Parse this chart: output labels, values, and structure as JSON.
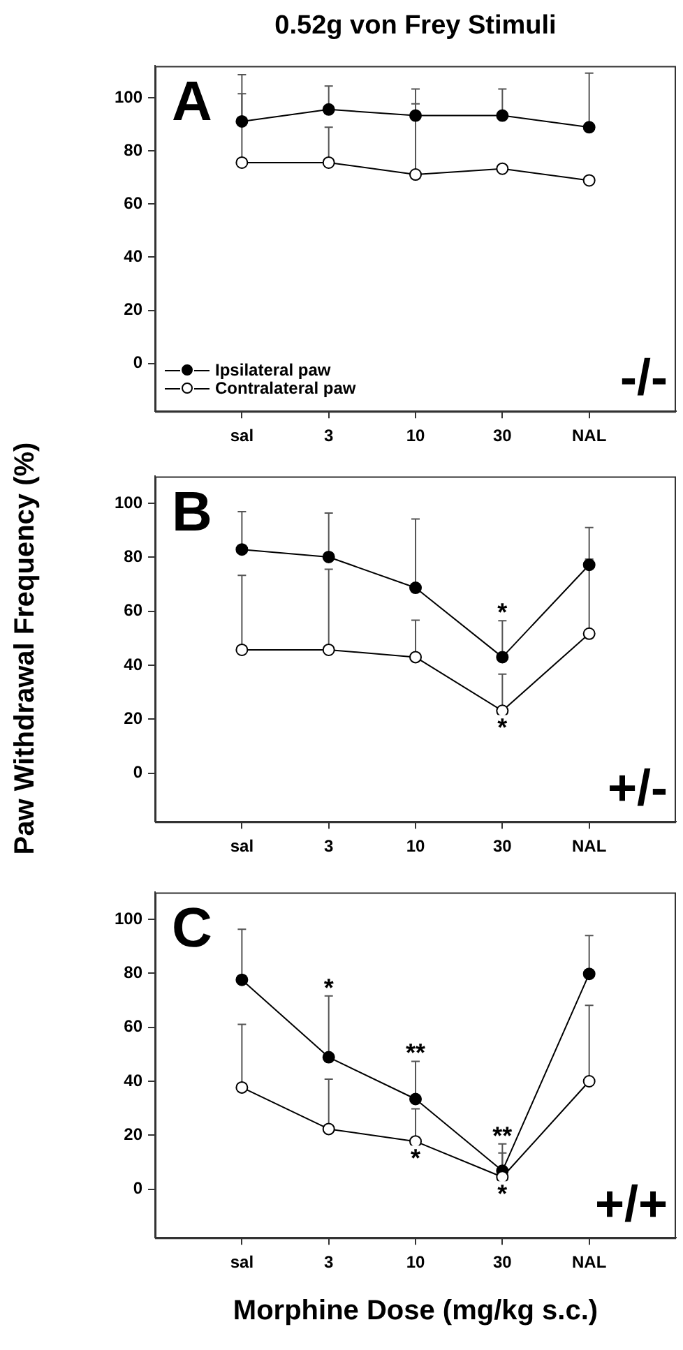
{
  "chart_data": [
    {
      "type": "line",
      "title": "0.52g von Frey Stimuli",
      "categories": [
        "sal",
        "3",
        "10",
        "30",
        "NAL"
      ],
      "ylim": [
        -18,
        112
      ],
      "yticks": [
        0,
        20,
        40,
        60,
        80,
        100
      ],
      "legend": "bottom left",
      "marker": "circle",
      "line_style": "solid",
      "series": [
        {
          "name": "Ipsilateral paw",
          "color": "#000000",
          "values": [
            91.1,
            95.6,
            93.3,
            93.3,
            88.9
          ],
          "errors": [
            [
              91.1,
              108.7
            ],
            [
              95.6,
              104.4
            ],
            [
              93.3,
              103.3
            ],
            [
              93.3,
              103.3
            ],
            [
              88.9,
              109.3
            ]
          ]
        },
        {
          "name": "Contralateral paw",
          "color": "#ffffff",
          "values": [
            75.6,
            75.6,
            71.1,
            73.3,
            68.9
          ],
          "errors": [
            [
              75.6,
              101.5
            ],
            [
              75.6,
              88.9
            ],
            [
              71.1,
              97.7
            ],
            null,
            null
          ]
        }
      ],
      "annotations": [
        "A",
        "-/-"
      ]
    },
    {
      "type": "line",
      "ylabel": "Paw Withdrawal Frequency (%)",
      "categories": [
        "sal",
        "3",
        "10",
        "30",
        "NAL"
      ],
      "ylim": [
        -18,
        110
      ],
      "yticks": [
        0,
        20,
        40,
        60,
        80,
        100
      ],
      "marker": "circle",
      "line_style": "solid",
      "series": [
        {
          "color": "#000000",
          "values": [
            82.9,
            80.1,
            68.7,
            43,
            77.2
          ],
          "errors": [
            [
              82.9,
              96.9
            ],
            [
              80.1,
              96.4
            ],
            [
              68.7,
              94.2
            ],
            [
              43,
              56.5
            ],
            [
              77.2,
              91
            ]
          ]
        },
        {
          "color": "#ffffff",
          "values": [
            45.7,
            45.7,
            43,
            23.1,
            51.7
          ],
          "errors": [
            [
              45.7,
              73.3
            ],
            [
              45.7,
              75.6
            ],
            [
              43,
              56.7
            ],
            [
              23.1,
              36.7
            ],
            [
              51.7,
              79.3
            ]
          ]
        }
      ],
      "annotations": [
        "B",
        "+/-",
        {
          "text": "*",
          "x": "30",
          "y": 56.5
        },
        {
          "text": "*",
          "x": "30",
          "y": 23.1
        }
      ]
    },
    {
      "type": "line",
      "xlabel": "Morphine Dose (mg/kg s.c.)",
      "categories": [
        "sal",
        "3",
        "10",
        "30",
        "NAL"
      ],
      "ylim": [
        -18,
        110
      ],
      "yticks": [
        0,
        20,
        40,
        60,
        80,
        100
      ],
      "marker": "circle",
      "line_style": "solid",
      "series": [
        {
          "color": "#000000",
          "values": [
            77.6,
            48.9,
            33.4,
            6.8,
            79.8
          ],
          "errors": [
            [
              77.6,
              96.3
            ],
            [
              48.9,
              71.6
            ],
            [
              33.4,
              47.4
            ],
            [
              6.8,
              16.8
            ],
            [
              79.8,
              94
            ]
          ]
        },
        {
          "color": "#ffffff",
          "values": [
            37.7,
            22.3,
            17.7,
            4.5,
            40
          ],
          "errors": [
            [
              37.7,
              61.1
            ],
            [
              22.3,
              40.8
            ],
            [
              17.7,
              29.8
            ],
            [
              4.5,
              13.4
            ],
            [
              40,
              68.1
            ]
          ]
        }
      ],
      "annotations": [
        "C",
        "+/+",
        {
          "text": "*",
          "x": "3",
          "y": 71.6
        },
        {
          "text": "**",
          "x": "10",
          "y": 47.4
        },
        {
          "text": "*",
          "x": "10",
          "y": 17.7
        },
        {
          "text": "**",
          "x": "30",
          "y": 16.8
        },
        {
          "text": "*",
          "x": "30",
          "y": 4.5
        }
      ]
    }
  ]
}
